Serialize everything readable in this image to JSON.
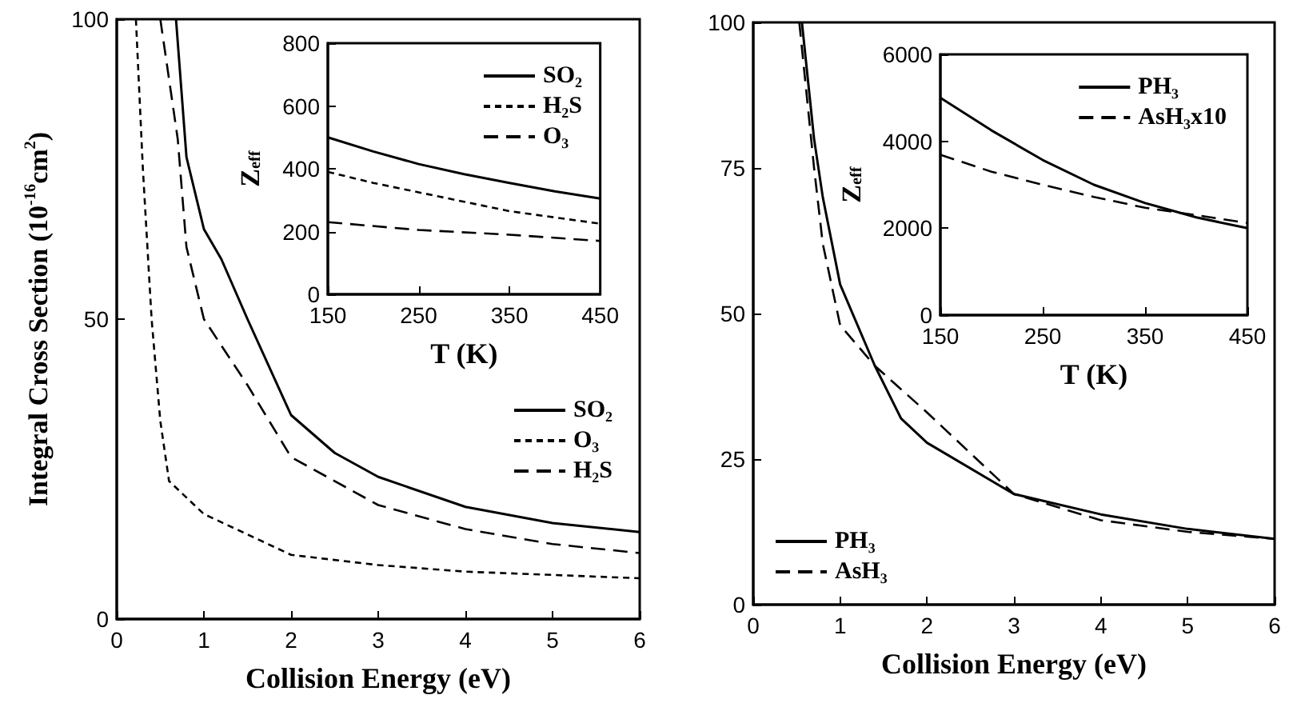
{
  "chart_data": [
    {
      "type": "line",
      "xlabel": "Collision Energy (eV)",
      "ylabel": "Integral Cross Section (10$^{-16}$cm$^{2}$)",
      "xlim": [
        0,
        6
      ],
      "ylim": [
        0,
        100
      ],
      "xticks": [
        0,
        1,
        2,
        3,
        4,
        5,
        6
      ],
      "yticks": [
        0,
        50,
        100
      ],
      "legend": "right",
      "grid": false,
      "marker": "none",
      "series": [
        {
          "name": "SO₂",
          "color": "#000000",
          "line_style": "solid",
          "x": [
            0.68,
            0.8,
            1,
            1.2,
            1.5,
            2,
            2.5,
            3,
            4,
            5,
            6
          ],
          "values": [
            100,
            77,
            65,
            60,
            50,
            34,
            27.7,
            23.7,
            18.7,
            16,
            14.5
          ]
        },
        {
          "name": "O₃",
          "color": "#000000",
          "line_style": "dotted",
          "x": [
            0.22,
            0.3,
            0.4,
            0.5,
            0.6,
            1,
            2,
            3,
            4,
            6
          ],
          "values": [
            100,
            75,
            50,
            33,
            23,
            17.5,
            10.7,
            9,
            7.9,
            6.8
          ]
        },
        {
          "name": "H₂S",
          "color": "#000000",
          "line_style": "dashed",
          "x": [
            0.5,
            0.7,
            0.8,
            1,
            1.5,
            2,
            3,
            4,
            5,
            6
          ],
          "values": [
            100,
            80,
            62,
            50,
            39,
            27,
            19,
            15,
            12.5,
            11
          ]
        }
      ]
    },
    {
      "type": "line",
      "xlabel": "T (K)",
      "ylabel": "Z$_{eff}$",
      "xlim": [
        150,
        450
      ],
      "ylim": [
        0,
        800
      ],
      "xticks": [
        150,
        250,
        350,
        450
      ],
      "yticks": [
        0,
        200,
        400,
        600,
        800
      ],
      "legend": "top right",
      "grid": false,
      "marker": "none",
      "series": [
        {
          "name": "SO₂",
          "color": "#000000",
          "line_style": "solid",
          "x": [
            150,
            200,
            250,
            300,
            350,
            400,
            450
          ],
          "values": [
            500,
            455,
            415,
            383,
            355,
            328,
            305
          ]
        },
        {
          "name": "H₂S",
          "color": "#000000",
          "line_style": "dotted",
          "x": [
            150,
            200,
            250,
            300,
            350,
            400,
            450
          ],
          "values": [
            390,
            355,
            325,
            295,
            265,
            245,
            225
          ]
        },
        {
          "name": "O₃",
          "color": "#000000",
          "line_style": "dashed",
          "x": [
            150,
            250,
            350,
            450
          ],
          "values": [
            230,
            205,
            190,
            170
          ]
        }
      ]
    },
    {
      "type": "line",
      "xlabel": "Collision Energy (eV)",
      "xlim": [
        0,
        6
      ],
      "ylim": [
        0,
        100
      ],
      "xticks": [
        0,
        1,
        2,
        3,
        4,
        5,
        6
      ],
      "yticks": [
        0,
        25,
        50,
        75,
        100
      ],
      "legend": "bottom left",
      "grid": false,
      "marker": "none",
      "series": [
        {
          "name": "PH₃",
          "color": "#000000",
          "line_style": "solid",
          "x": [
            0.56,
            0.7,
            0.8,
            1,
            1.4,
            1.7,
            2,
            3,
            4,
            5,
            6
          ],
          "values": [
            100,
            80,
            70,
            55,
            41,
            32,
            27.8,
            19,
            15.5,
            13,
            11.3
          ]
        },
        {
          "name": "AsH₃",
          "color": "#000000",
          "line_style": "dashed",
          "x": [
            0.53,
            0.7,
            0.8,
            1,
            1.4,
            2,
            2.5,
            3,
            4,
            5,
            6
          ],
          "values": [
            100,
            75,
            62,
            48,
            41,
            33,
            26,
            19,
            14.5,
            12.5,
            11.3
          ]
        }
      ]
    },
    {
      "type": "line",
      "xlabel": "T (K)",
      "ylabel": "Z$_{eff}$",
      "xlim": [
        150,
        450
      ],
      "ylim": [
        0,
        6000
      ],
      "xticks": [
        150,
        250,
        350,
        450
      ],
      "yticks": [
        0,
        2000,
        4000,
        6000
      ],
      "legend": "top right",
      "grid": false,
      "marker": "none",
      "series": [
        {
          "name": "PH₃",
          "color": "#000000",
          "line_style": "solid",
          "x": [
            150,
            200,
            250,
            300,
            350,
            400,
            450
          ],
          "values": [
            5000,
            4250,
            3570,
            3000,
            2580,
            2250,
            2000
          ]
        },
        {
          "name": "AsH₃x10",
          "color": "#000000",
          "line_style": "dashed",
          "x": [
            150,
            200,
            250,
            300,
            350,
            400,
            450
          ],
          "values": [
            3690,
            3300,
            3000,
            2720,
            2470,
            2300,
            2120
          ]
        }
      ]
    }
  ]
}
